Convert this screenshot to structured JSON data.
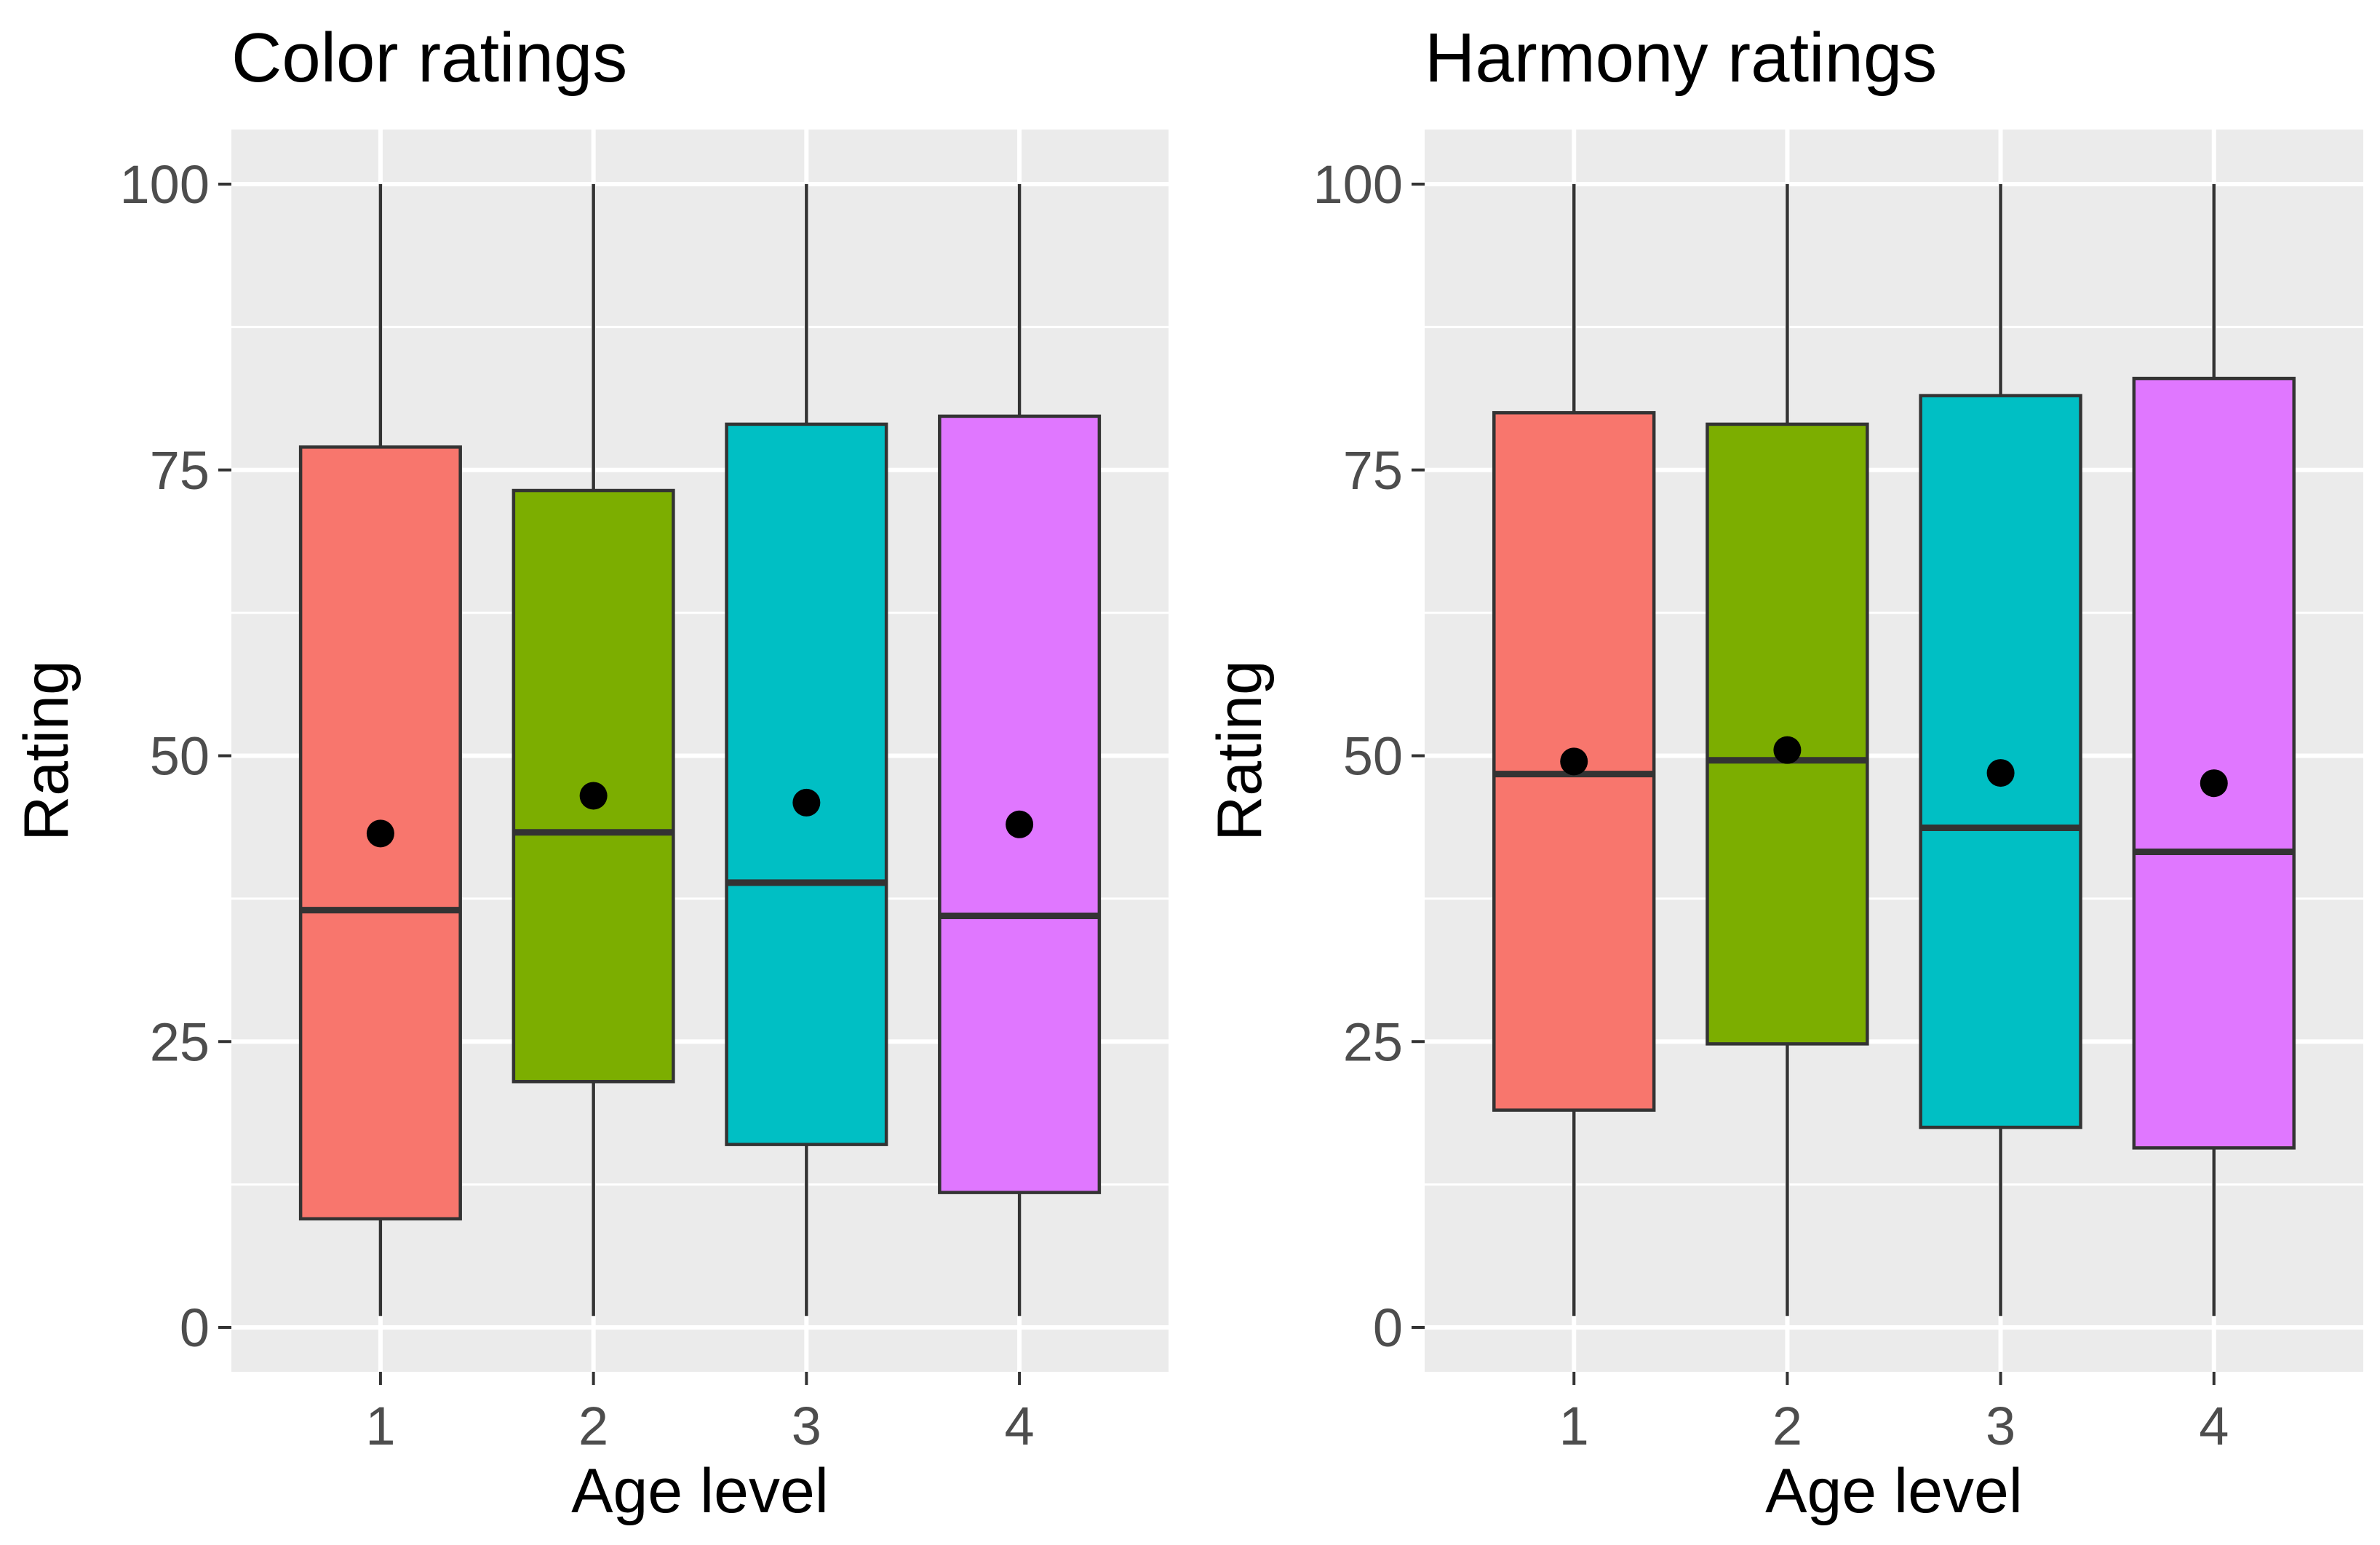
{
  "chart_data": [
    {
      "type": "boxplot",
      "title": "Color ratings",
      "xlabel": "Age level",
      "ylabel": "Rating",
      "ylim": [
        0,
        100
      ],
      "yticks": [
        0,
        25,
        50,
        75,
        100
      ],
      "grid": true,
      "legend": "none",
      "categories": [
        "1",
        "2",
        "3",
        "4"
      ],
      "boxes": [
        {
          "category": "1",
          "min": 1,
          "q1": 9.5,
          "median": 36.5,
          "q3": 77,
          "max": 100,
          "mean": 43.2,
          "color": "#F8766D"
        },
        {
          "category": "2",
          "min": 1,
          "q1": 21.5,
          "median": 43.3,
          "q3": 73.2,
          "max": 100,
          "mean": 46.5,
          "color": "#7CAE00"
        },
        {
          "category": "3",
          "min": 1,
          "q1": 16,
          "median": 38.9,
          "q3": 79,
          "max": 100,
          "mean": 45.9,
          "color": "#00BFC4"
        },
        {
          "category": "4",
          "min": 1,
          "q1": 11.8,
          "median": 36,
          "q3": 79.7,
          "max": 100,
          "mean": 44,
          "color": "#E077FF"
        }
      ]
    },
    {
      "type": "boxplot",
      "title": "Harmony ratings",
      "xlabel": "Age level",
      "ylabel": "Rating",
      "ylim": [
        0,
        100
      ],
      "yticks": [
        0,
        25,
        50,
        75,
        100
      ],
      "grid": true,
      "legend": "none",
      "categories": [
        "1",
        "2",
        "3",
        "4"
      ],
      "boxes": [
        {
          "category": "1",
          "min": 1,
          "q1": 19,
          "median": 48.4,
          "q3": 80,
          "max": 100,
          "mean": 49.5,
          "color": "#F8766D"
        },
        {
          "category": "2",
          "min": 1,
          "q1": 24.8,
          "median": 49.6,
          "q3": 79,
          "max": 100,
          "mean": 50.5,
          "color": "#7CAE00"
        },
        {
          "category": "3",
          "min": 1,
          "q1": 17.5,
          "median": 43.7,
          "q3": 81.5,
          "max": 100,
          "mean": 48.5,
          "color": "#00BFC4"
        },
        {
          "category": "4",
          "min": 1,
          "q1": 15.7,
          "median": 41.6,
          "q3": 83,
          "max": 100,
          "mean": 47.6,
          "color": "#E077FF"
        }
      ]
    }
  ]
}
